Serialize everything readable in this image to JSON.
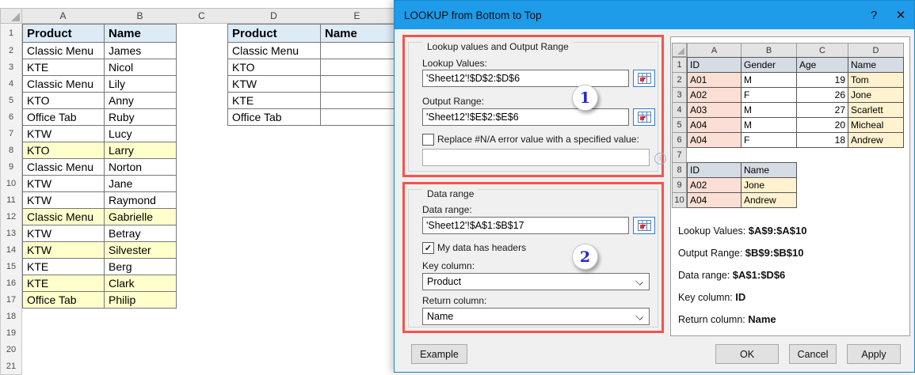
{
  "colors": {
    "title_bar": "#1E9BE9",
    "annotation_red": "#F4544C",
    "header_blue": "#DDEBF7",
    "highlight_yellow": "#FFFFCC",
    "mini_header_blue": "#D6DCE4",
    "mini_pink": "#FBDFD5",
    "mini_gold": "#FEF2CF",
    "dialog_bg": "#F0F0F0"
  },
  "window": {
    "title": "LOOKUP from Bottom to Top",
    "help_icon": "?",
    "close_icon": "✕"
  },
  "sheet": {
    "col_letters": [
      "A",
      "B",
      "C",
      "D",
      "E"
    ],
    "row_count": 21,
    "main_table": {
      "headers": [
        "Product",
        "Name"
      ],
      "rows": [
        {
          "product": "Classic Menu",
          "name": "James",
          "hl": false
        },
        {
          "product": "KTE",
          "name": "Nicol",
          "hl": false
        },
        {
          "product": "Classic Menu",
          "name": "Lily",
          "hl": false
        },
        {
          "product": "KTO",
          "name": "Anny",
          "hl": false
        },
        {
          "product": "Office Tab",
          "name": "Ruby",
          "hl": false
        },
        {
          "product": "KTW",
          "name": "Lucy",
          "hl": false
        },
        {
          "product": "KTO",
          "name": "Larry",
          "hl": true
        },
        {
          "product": "Classic Menu",
          "name": "Norton",
          "hl": false
        },
        {
          "product": "KTW",
          "name": "Jane",
          "hl": false
        },
        {
          "product": "KTW",
          "name": "Raymond",
          "hl": false
        },
        {
          "product": "Classic Menu",
          "name": "Gabrielle",
          "hl": true
        },
        {
          "product": "KTW",
          "name": "Betray",
          "hl": false
        },
        {
          "product": "KTW",
          "name": "Silvester",
          "hl": true
        },
        {
          "product": "KTE",
          "name": "Berg",
          "hl": false
        },
        {
          "product": "KTE",
          "name": "Clark",
          "hl": true
        },
        {
          "product": "Office Tab",
          "name": "Philip",
          "hl": true
        }
      ]
    },
    "lookup_table": {
      "headers": [
        "Product",
        "Name"
      ],
      "rows": [
        "Classic Menu",
        "KTO",
        "KTW",
        "KTE",
        "Office Tab"
      ]
    }
  },
  "dialog": {
    "group1": {
      "title": "Lookup values and Output Range",
      "lookup_label": "Lookup Values:",
      "lookup_value": "'Sheet12'!$D$2:$D$6",
      "output_label": "Output Range:",
      "output_value": "'Sheet12'!$E$2:$E$6",
      "replace_label": "Replace #N/A error value with a specified value:",
      "replace_value": "",
      "replace_checked": false,
      "badge": "1"
    },
    "group2": {
      "title": "Data range",
      "data_label": "Data range:",
      "data_value": "'Sheet12'!$A$1:$B$17",
      "headers_label": "My data has headers",
      "headers_checked": true,
      "key_label": "Key column:",
      "key_value": "Product",
      "return_label": "Return column:",
      "return_value": "Name",
      "badge": "2"
    },
    "info_icon": "i",
    "example_button": "Example",
    "action_buttons": [
      "OK",
      "Cancel",
      "Apply"
    ],
    "example_panel": {
      "col_letters": [
        "A",
        "B",
        "C",
        "D"
      ],
      "table1": {
        "headers": [
          "ID",
          "Gender",
          "Age",
          "Name"
        ],
        "rows": [
          [
            "A01",
            "M",
            "19",
            "Tom"
          ],
          [
            "A02",
            "F",
            "26",
            "Jone"
          ],
          [
            "A03",
            "M",
            "27",
            "Scarlett"
          ],
          [
            "A04",
            "M",
            "20",
            "Micheal"
          ],
          [
            "A04",
            "F",
            "18",
            "Andrew"
          ]
        ]
      },
      "table2": {
        "headers": [
          "ID",
          "Name"
        ],
        "rows": [
          [
            "A02",
            "Jone"
          ],
          [
            "A04",
            "Andrew"
          ]
        ]
      },
      "captions": [
        {
          "label": "Lookup Values:",
          "value": "$A$9:$A$10"
        },
        {
          "label": "Output Range:",
          "value": "$B$9:$B$10"
        },
        {
          "label": "Data range:",
          "value": "$A$1:$D$6"
        },
        {
          "label": "Key column:",
          "value": "ID"
        },
        {
          "label": "Return column:",
          "value": "Name"
        }
      ]
    }
  }
}
